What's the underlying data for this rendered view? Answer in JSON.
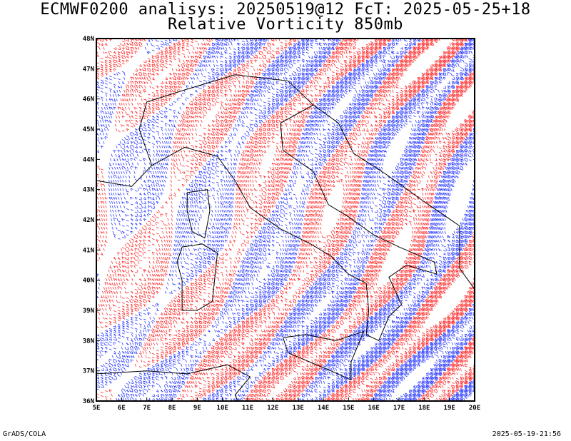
{
  "header": {
    "title_line1": "ECMWF0200 analisys: 20250519@12 FcT: 2025-05-25+18",
    "title_line2": "Relative Vorticity 850mb"
  },
  "map": {
    "lat_labels": [
      "48N",
      "47N",
      "46N",
      "45N",
      "44N",
      "43N",
      "42N",
      "41N",
      "40N",
      "39N",
      "38N",
      "37N",
      "36N"
    ],
    "lon_labels": [
      "5E",
      "6E",
      "7E",
      "8E",
      "9E",
      "10E",
      "11E",
      "12E",
      "13E",
      "14E",
      "15E",
      "16E",
      "17E",
      "18E",
      "19E",
      "20E"
    ],
    "lat_range": [
      36,
      48
    ],
    "lon_range": [
      5,
      20
    ],
    "colors": {
      "positive_contour": "#ff2a2a",
      "negative_contour": "#2b3bff",
      "coastline": "#000000",
      "frame": "#000000"
    }
  },
  "footer": {
    "left": "GrADS/COLA",
    "right": "2025-05-19-21:56"
  }
}
